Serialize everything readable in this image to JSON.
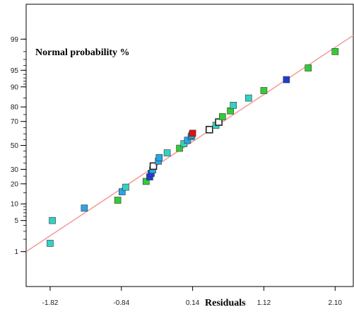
{
  "chart_data": {
    "type": "scatter",
    "title": "",
    "ylabel_inside": "Normal probability %",
    "xlabel": "Residuals",
    "xlim": [
      -2.15,
      2.35
    ],
    "ylim_probability": [
      0.1,
      99.9
    ],
    "x_ticks": [
      -1.82,
      -0.84,
      0.14,
      1.12,
      2.1
    ],
    "x_tick_labels": [
      "-1.82",
      "-0.84",
      "0.14",
      "1.12",
      "2.10"
    ],
    "y_ticks": [
      1,
      5,
      10,
      20,
      30,
      50,
      70,
      80,
      90,
      95,
      99
    ],
    "y_tick_labels": [
      "1",
      "5",
      "10",
      "20",
      "30",
      "50",
      "70",
      "80",
      "90",
      "95",
      "99"
    ],
    "grid": false,
    "reference_line": {
      "x": [
        -2.15,
        2.35
      ],
      "y_percent": [
        1.0,
        99.2
      ],
      "color": "#f2a0a0"
    },
    "points": [
      {
        "x": -1.82,
        "y": 1.6,
        "color": "#33d1c4"
      },
      {
        "x": -1.79,
        "y": 5.0,
        "color": "#33d1c4"
      },
      {
        "x": -1.35,
        "y": 8.5,
        "color": "#29a6e6"
      },
      {
        "x": -0.89,
        "y": 11.5,
        "color": "#33cc33"
      },
      {
        "x": -0.83,
        "y": 15.5,
        "color": "#29a6e6"
      },
      {
        "x": -0.78,
        "y": 18.0,
        "color": "#33d1c4"
      },
      {
        "x": -0.5,
        "y": 21.5,
        "color": "#33cc33"
      },
      {
        "x": -0.45,
        "y": 24.5,
        "color": "#1a3fd6"
      },
      {
        "x": -0.43,
        "y": 27.0,
        "color": "#1a3fd6"
      },
      {
        "x": -0.41,
        "y": 29.5,
        "color": "#29a6e6"
      },
      {
        "x": -0.4,
        "y": 32.5,
        "color": "#33d1c4",
        "hollow": true
      },
      {
        "x": -0.33,
        "y": 36.5,
        "color": "#29a6e6"
      },
      {
        "x": -0.32,
        "y": 39.5,
        "color": "#29a6e6"
      },
      {
        "x": -0.21,
        "y": 43.5,
        "color": "#33d1c4"
      },
      {
        "x": -0.04,
        "y": 47.5,
        "color": "#33cc33"
      },
      {
        "x": 0.02,
        "y": 51.5,
        "color": "#33d1c4"
      },
      {
        "x": 0.07,
        "y": 54.5,
        "color": "#29a6e6"
      },
      {
        "x": 0.12,
        "y": 57.5,
        "color": "#29a6e6"
      },
      {
        "x": 0.13,
        "y": 59.0,
        "color": "#29a6e6"
      },
      {
        "x": 0.14,
        "y": 60.5,
        "color": "#e01010"
      },
      {
        "x": 0.37,
        "y": 63.5,
        "color": "#33d1c4",
        "hollow": true
      },
      {
        "x": 0.46,
        "y": 67.0,
        "color": "#33d1c4"
      },
      {
        "x": 0.5,
        "y": 69.5,
        "color": "#33d1c4",
        "hollow": true
      },
      {
        "x": 0.55,
        "y": 73.5,
        "color": "#33cc33"
      },
      {
        "x": 0.66,
        "y": 77.5,
        "color": "#33cc33"
      },
      {
        "x": 0.7,
        "y": 81.0,
        "color": "#33d1c4"
      },
      {
        "x": 0.91,
        "y": 85.0,
        "color": "#33d1c4"
      },
      {
        "x": 1.12,
        "y": 88.5,
        "color": "#33cc33"
      },
      {
        "x": 1.43,
        "y": 92.5,
        "color": "#1a3fd6"
      },
      {
        "x": 1.73,
        "y": 95.5,
        "color": "#33cc33"
      },
      {
        "x": 2.1,
        "y": 98.0,
        "color": "#33cc33"
      }
    ]
  }
}
